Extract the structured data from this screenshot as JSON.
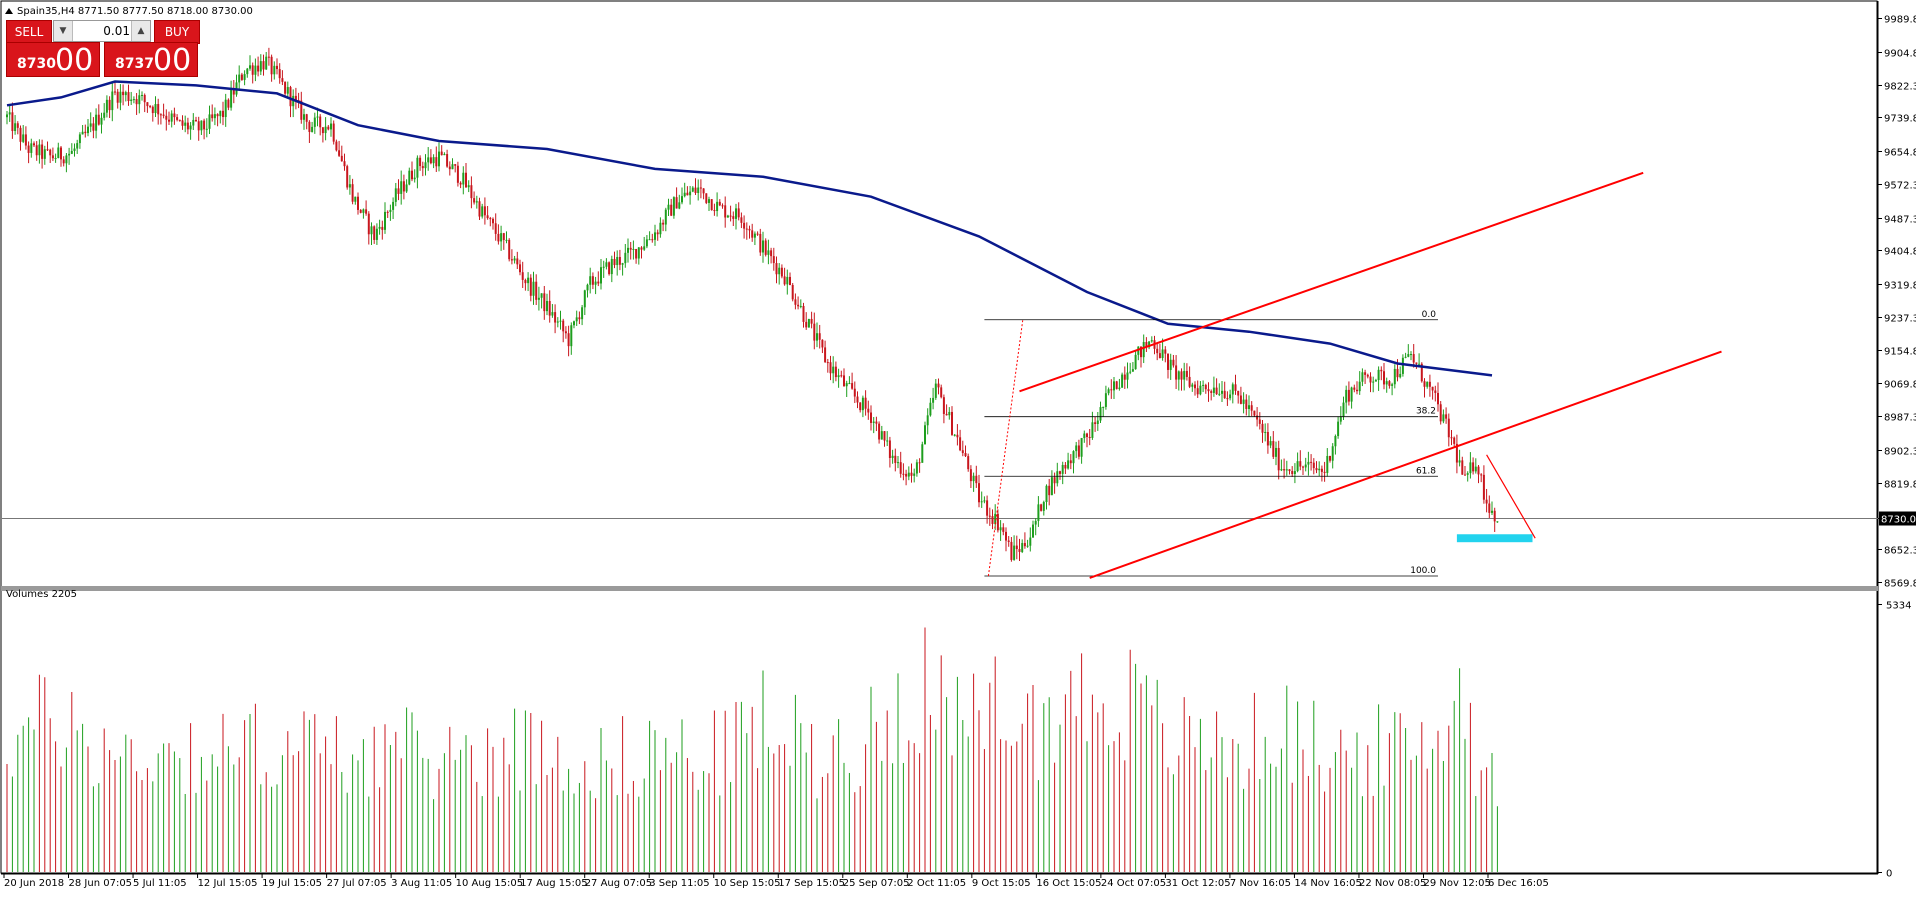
{
  "symbol_header": "Spain35,H4  8771.50 8777.50 8718.00 8730.00",
  "trade_panel": {
    "sell_label": "SELL",
    "buy_label": "BUY",
    "lot": "0.01",
    "sell_small": "8730",
    "sell_big": "00",
    "buy_small": "8737",
    "buy_big": "00"
  },
  "colors": {
    "bull": "#1e9e1e",
    "bear": "#c8161d",
    "ma": "#0a1a8c",
    "channel": "#ff0000",
    "target_box": "#22d3ee",
    "fib": "#000000"
  },
  "icons": {
    "header_arrow": "triangle-up-icon",
    "lot_down": "triangle-down-icon",
    "lot_up": "triangle-up-icon"
  },
  "chart_data": [
    {
      "type": "candlestick",
      "title": "Spain35,H4",
      "ylim": [
        8569.8,
        9989.8
      ],
      "y_ticks": [
        "9989.80",
        "9904.80",
        "9822.30",
        "9739.80",
        "9654.80",
        "9572.30",
        "9487.30",
        "9404.80",
        "9319.80",
        "9237.30",
        "9154.80",
        "9069.80",
        "8987.30",
        "8902.30",
        "8819.80",
        "8730.00",
        "8652.30",
        "8569.80"
      ],
      "current_price": 8730.0,
      "x_labels": [
        "20 Jun 2018",
        "28 Jun 07:05",
        "5 Jul 11:05",
        "12 Jul 15:05",
        "19 Jul 15:05",
        "27 Jul 07:05",
        "3 Aug 11:05",
        "10 Aug 15:05",
        "17 Aug 15:05",
        "27 Aug 07:05",
        "3 Sep 11:05",
        "10 Sep 15:05",
        "17 Sep 15:05",
        "25 Sep 07:05",
        "2 Oct 11:05",
        "9 Oct 15:05",
        "16 Oct 15:05",
        "24 Oct 07:05",
        "31 Oct 12:05",
        "7 Nov 16:05",
        "14 Nov 16:05",
        "22 Nov 08:05",
        "29 Nov 12:05",
        "6 Dec 16:05"
      ],
      "close_path": [
        [
          0,
          9740
        ],
        [
          8,
          9660
        ],
        [
          16,
          9640
        ],
        [
          24,
          9650
        ],
        [
          32,
          9720
        ],
        [
          40,
          9800
        ],
        [
          48,
          9790
        ],
        [
          56,
          9760
        ],
        [
          64,
          9720
        ],
        [
          72,
          9710
        ],
        [
          80,
          9750
        ],
        [
          88,
          9860
        ],
        [
          96,
          9880
        ],
        [
          104,
          9800
        ],
        [
          112,
          9720
        ],
        [
          120,
          9720
        ],
        [
          128,
          9540
        ],
        [
          136,
          9440
        ],
        [
          144,
          9540
        ],
        [
          152,
          9620
        ],
        [
          160,
          9640
        ],
        [
          168,
          9590
        ],
        [
          176,
          9500
        ],
        [
          184,
          9420
        ],
        [
          192,
          9330
        ],
        [
          200,
          9260
        ],
        [
          208,
          9180
        ],
        [
          216,
          9320
        ],
        [
          224,
          9370
        ],
        [
          232,
          9400
        ],
        [
          240,
          9450
        ],
        [
          248,
          9530
        ],
        [
          256,
          9560
        ],
        [
          264,
          9510
        ],
        [
          272,
          9490
        ],
        [
          280,
          9410
        ],
        [
          288,
          9340
        ],
        [
          296,
          9230
        ],
        [
          304,
          9120
        ],
        [
          312,
          9050
        ],
        [
          320,
          8990
        ],
        [
          328,
          8880
        ],
        [
          336,
          8830
        ],
        [
          344,
          9060
        ],
        [
          352,
          8930
        ],
        [
          360,
          8780
        ],
        [
          368,
          8710
        ],
        [
          372,
          8640
        ],
        [
          376,
          8660
        ],
        [
          380,
          8700
        ],
        [
          384,
          8790
        ],
        [
          392,
          8870
        ],
        [
          400,
          8930
        ],
        [
          408,
          9040
        ],
        [
          416,
          9120
        ],
        [
          424,
          9180
        ],
        [
          432,
          9100
        ],
        [
          440,
          9060
        ],
        [
          448,
          9060
        ],
        [
          456,
          9040
        ],
        [
          464,
          8960
        ],
        [
          472,
          8860
        ],
        [
          480,
          8860
        ],
        [
          488,
          8850
        ],
        [
          496,
          9040
        ],
        [
          504,
          9090
        ],
        [
          512,
          9080
        ],
        [
          520,
          9140
        ],
        [
          528,
          9040
        ],
        [
          536,
          8910
        ],
        [
          540,
          8820
        ],
        [
          544,
          8880
        ],
        [
          548,
          8770
        ],
        [
          552,
          8730
        ]
      ],
      "overlays": {
        "moving_average": [
          [
            0,
            9770
          ],
          [
            20,
            9790
          ],
          [
            40,
            9830
          ],
          [
            70,
            9820
          ],
          [
            100,
            9800
          ],
          [
            130,
            9720
          ],
          [
            160,
            9680
          ],
          [
            200,
            9660
          ],
          [
            240,
            9610
          ],
          [
            280,
            9590
          ],
          [
            320,
            9540
          ],
          [
            360,
            9440
          ],
          [
            400,
            9300
          ],
          [
            430,
            9220
          ],
          [
            460,
            9200
          ],
          [
            490,
            9170
          ],
          [
            515,
            9120
          ],
          [
            550,
            9090
          ]
        ],
        "channel_upper": [
          [
            375,
            9050
          ],
          [
            606,
            9600
          ]
        ],
        "channel_lower": [
          [
            401,
            8580
          ],
          [
            635,
            9150
          ]
        ],
        "projection_arrow": [
          [
            548,
            8890
          ],
          [
            566,
            8680
          ]
        ],
        "target_zone": [
          8690,
          8670
        ]
      },
      "fibonacci": {
        "levels": [
          {
            "label": "0.0",
            "value": 9230
          },
          {
            "label": "38.2",
            "value": 8986
          },
          {
            "label": "61.8",
            "value": 8836
          },
          {
            "label": "100.0",
            "value": 8585
          }
        ]
      }
    },
    {
      "type": "bar",
      "title": "Volumes 2205",
      "ylim": [
        0,
        5334
      ],
      "y_ticks": [
        "5334",
        "0"
      ],
      "volume_profile": [
        [
          0,
          2900
        ],
        [
          20,
          3400
        ],
        [
          40,
          2500
        ],
        [
          60,
          2700
        ],
        [
          80,
          2600
        ],
        [
          100,
          2900
        ],
        [
          120,
          2600
        ],
        [
          140,
          2700
        ],
        [
          160,
          2500
        ],
        [
          180,
          2700
        ],
        [
          200,
          2800
        ],
        [
          220,
          2400
        ],
        [
          240,
          2700
        ],
        [
          260,
          2500
        ],
        [
          280,
          3300
        ],
        [
          300,
          2600
        ],
        [
          320,
          3000
        ],
        [
          340,
          4400
        ],
        [
          350,
          3100
        ],
        [
          360,
          3200
        ],
        [
          370,
          3900
        ],
        [
          380,
          3200
        ],
        [
          390,
          3700
        ],
        [
          400,
          3800
        ],
        [
          410,
          4000
        ],
        [
          420,
          3500
        ],
        [
          430,
          3000
        ],
        [
          440,
          2800
        ],
        [
          450,
          2900
        ],
        [
          460,
          2800
        ],
        [
          470,
          3200
        ],
        [
          480,
          2900
        ],
        [
          490,
          2600
        ],
        [
          500,
          2600
        ],
        [
          510,
          2700
        ],
        [
          520,
          2600
        ],
        [
          530,
          3000
        ],
        [
          535,
          4200
        ],
        [
          540,
          3700
        ],
        [
          545,
          2400
        ],
        [
          550,
          2300
        ]
      ]
    }
  ]
}
